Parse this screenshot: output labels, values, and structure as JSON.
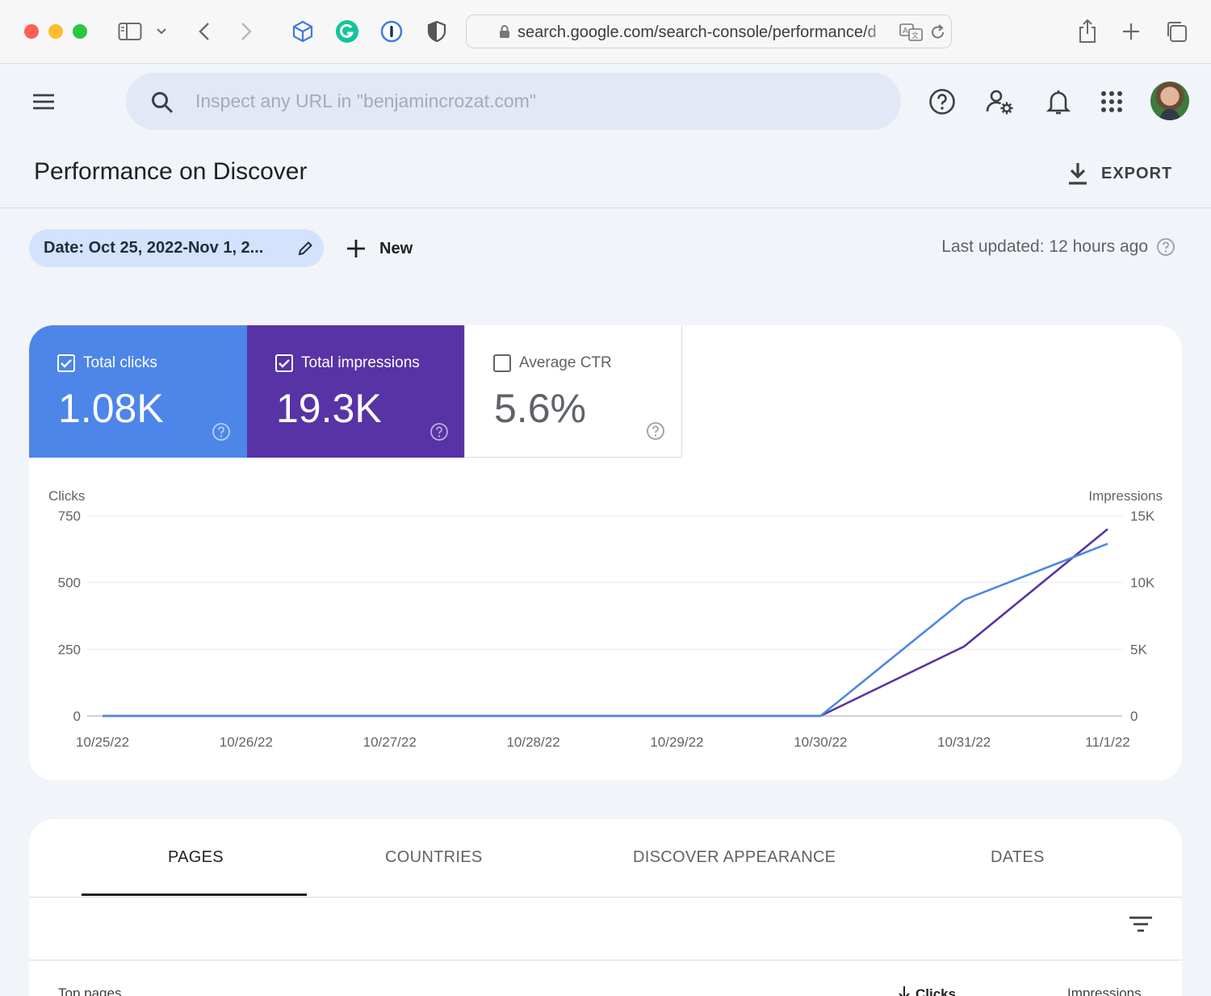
{
  "browser": {
    "url": "search.google.com/search-console/performance/d"
  },
  "header": {
    "search_placeholder": "Inspect any URL in \"benjamincrozat.com\""
  },
  "page": {
    "title": "Performance on Discover",
    "export_label": "EXPORT"
  },
  "filters": {
    "date_chip": "Date: Oct 25, 2022-Nov 1, 2...",
    "new_label": "New",
    "last_updated": "Last updated: 12 hours ago"
  },
  "metrics": [
    {
      "label": "Total clicks",
      "value": "1.08K",
      "checked": true,
      "color": "#4d86e8"
    },
    {
      "label": "Total impressions",
      "value": "19.3K",
      "checked": true,
      "color": "#5733a5"
    },
    {
      "label": "Average CTR",
      "value": "5.6%",
      "checked": false
    }
  ],
  "chart_data": {
    "type": "line",
    "x": [
      "10/25/22",
      "10/26/22",
      "10/27/22",
      "10/28/22",
      "10/29/22",
      "10/30/22",
      "10/31/22",
      "11/1/22"
    ],
    "y_left_label": "Clicks",
    "y_right_label": "Impressions",
    "y_left_ticks": [
      "750",
      "500",
      "250",
      "0"
    ],
    "y_right_ticks": [
      "15K",
      "10K",
      "5K",
      "0"
    ],
    "y_left_range": [
      0,
      750
    ],
    "y_right_range": [
      0,
      15000
    ],
    "grid": true,
    "series": [
      {
        "name": "Clicks",
        "axis": "left",
        "color": "#4d86e8",
        "values": [
          0,
          0,
          0,
          0,
          0,
          0,
          435,
          645
        ]
      },
      {
        "name": "Impressions",
        "axis": "right",
        "color": "#5733a5",
        "values": [
          0,
          0,
          0,
          0,
          0,
          0,
          5200,
          14000
        ]
      }
    ]
  },
  "tabs": [
    {
      "label": "PAGES",
      "active": true
    },
    {
      "label": "COUNTRIES",
      "active": false
    },
    {
      "label": "DISCOVER APPEARANCE",
      "active": false
    },
    {
      "label": "DATES",
      "active": false
    }
  ],
  "table": {
    "col_top_pages": "Top pages",
    "col_clicks": "Clicks",
    "col_impressions": "Impressions"
  }
}
